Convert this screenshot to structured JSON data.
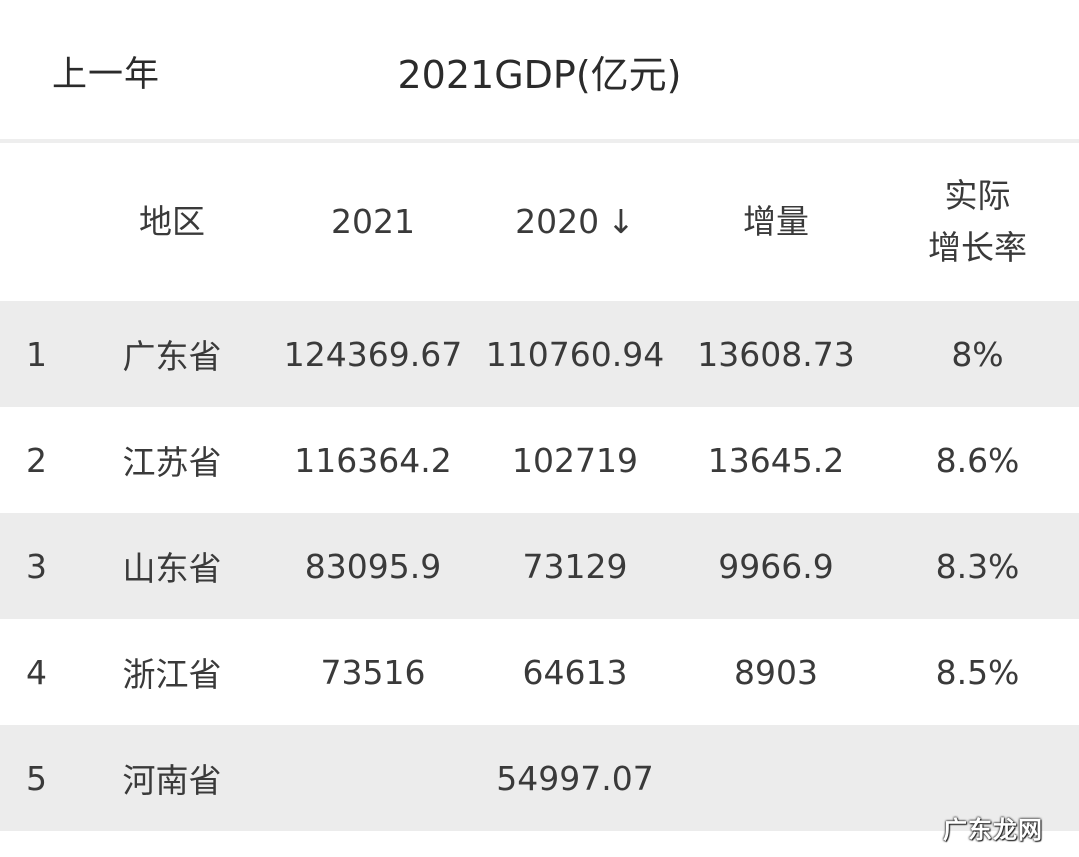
{
  "header": {
    "back_label": "上一年",
    "title": "2021GDP(亿元)"
  },
  "table": {
    "columns": {
      "region": "地区",
      "y2021": "2021",
      "y2020": "2020",
      "y2020_sort": "↓",
      "increase": "增量",
      "rate_line1": "实际",
      "rate_line2": "增长率"
    },
    "rows": [
      {
        "rank": "1",
        "region": "广东省",
        "y2021": "124369.67",
        "y2020": "110760.94",
        "increase": "13608.73",
        "rate": "8%"
      },
      {
        "rank": "2",
        "region": "江苏省",
        "y2021": "116364.2",
        "y2020": "102719",
        "increase": "13645.2",
        "rate": "8.6%"
      },
      {
        "rank": "3",
        "region": "山东省",
        "y2021": "83095.9",
        "y2020": "73129",
        "increase": "9966.9",
        "rate": "8.3%"
      },
      {
        "rank": "4",
        "region": "浙江省",
        "y2021": "73516",
        "y2020": "64613",
        "increase": "8903",
        "rate": "8.5%"
      },
      {
        "rank": "5",
        "region": "河南省",
        "y2021": "",
        "y2020": "54997.07",
        "increase": "",
        "rate": ""
      }
    ]
  },
  "watermark": "广东龙网",
  "colors": {
    "shaded_row": "#ececec",
    "text": "#3a3a3a"
  }
}
